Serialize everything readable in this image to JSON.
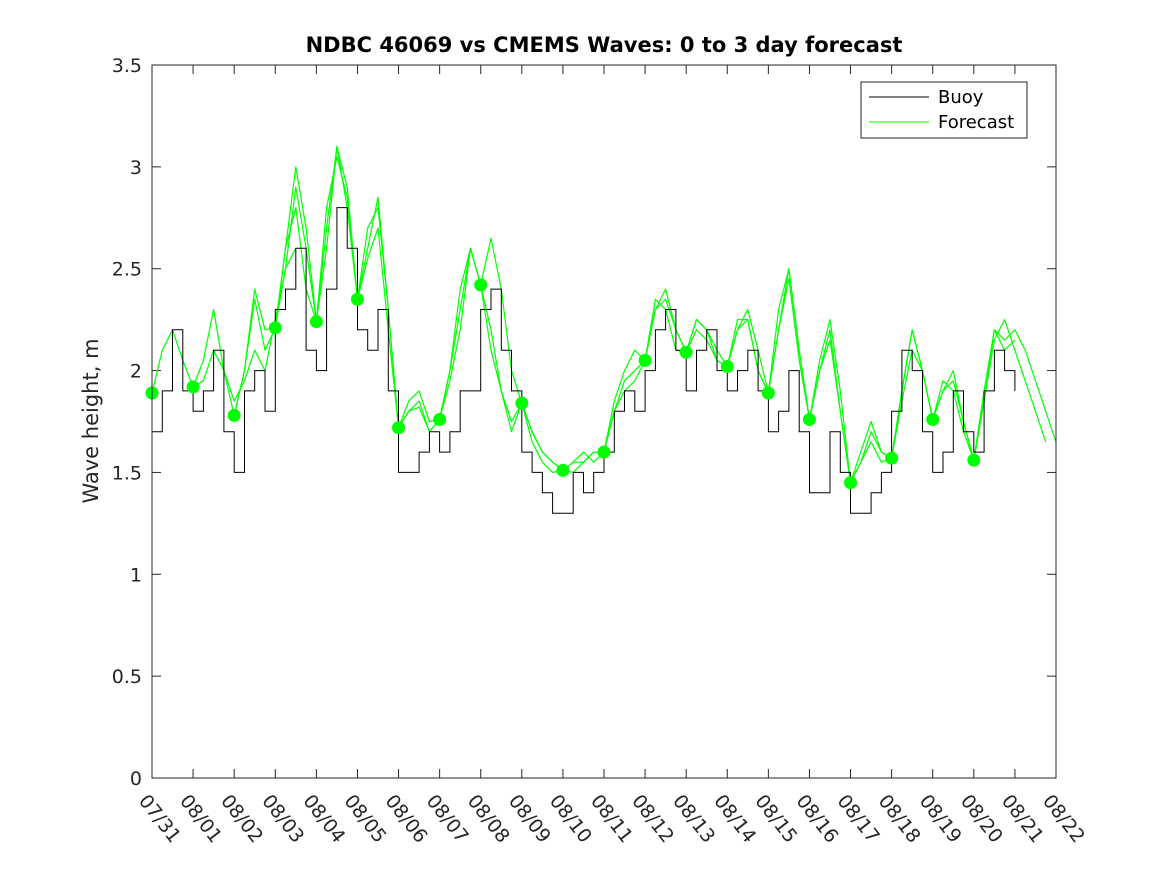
{
  "chart_data": {
    "type": "line",
    "title": "NDBC 46069 vs CMEMS Waves: 0 to 3 day forecast",
    "xlabel": "",
    "ylabel": "Wave height, m",
    "ylim": [
      0,
      3.5
    ],
    "yticks": [
      0,
      0.5,
      1,
      1.5,
      2,
      2.5,
      3,
      3.5
    ],
    "ytick_labels": [
      "0",
      "0.5",
      "1",
      "1.5",
      "2",
      "2.5",
      "3",
      "3.5"
    ],
    "xlim_days": [
      0,
      22
    ],
    "xtick_labels": [
      "07/31",
      "08/01",
      "08/02",
      "08/03",
      "08/04",
      "08/05",
      "08/06",
      "08/07",
      "08/08",
      "08/09",
      "08/10",
      "08/11",
      "08/12",
      "08/13",
      "08/14",
      "08/15",
      "08/16",
      "08/17",
      "08/18",
      "08/19",
      "08/20",
      "08/21",
      "08/22"
    ],
    "legend": {
      "location": "top-right",
      "entries": [
        "Buoy",
        "Forecast"
      ]
    },
    "colors": {
      "buoy": "#000000",
      "forecast": "#00ff00",
      "axes": "#262626"
    },
    "series": [
      {
        "name": "Buoy",
        "x_days": [
          0,
          0.25,
          0.5,
          0.75,
          1,
          1.25,
          1.5,
          1.75,
          2,
          2.25,
          2.5,
          2.75,
          3,
          3.25,
          3.5,
          3.75,
          4,
          4.25,
          4.5,
          4.75,
          5,
          5.25,
          5.5,
          5.75,
          6,
          6.25,
          6.5,
          6.75,
          7,
          7.25,
          7.5,
          7.75,
          8,
          8.25,
          8.5,
          8.75,
          9,
          9.25,
          9.5,
          9.75,
          10,
          10.25,
          10.5,
          10.75,
          11,
          11.25,
          11.5,
          11.75,
          12,
          12.25,
          12.5,
          12.75,
          13,
          13.25,
          13.5,
          13.75,
          14,
          14.25,
          14.5,
          14.75,
          15,
          15.25,
          15.5,
          15.75,
          16,
          16.25,
          16.5,
          16.75,
          17,
          17.25,
          17.5,
          17.75,
          18,
          18.25,
          18.5,
          18.75,
          19,
          19.25,
          19.5,
          19.75,
          20,
          20.25,
          20.5,
          20.75,
          21
        ],
        "values": [
          1.7,
          1.9,
          2.2,
          1.9,
          1.8,
          1.9,
          2.1,
          1.7,
          1.5,
          1.9,
          2.0,
          1.8,
          2.3,
          2.4,
          2.6,
          2.1,
          2.0,
          2.4,
          2.8,
          2.6,
          2.2,
          2.1,
          2.3,
          1.9,
          1.5,
          1.5,
          1.6,
          1.7,
          1.6,
          1.7,
          1.9,
          1.9,
          2.3,
          2.4,
          2.1,
          1.9,
          1.6,
          1.5,
          1.4,
          1.3,
          1.3,
          1.5,
          1.4,
          1.5,
          1.6,
          1.8,
          1.9,
          1.8,
          2.0,
          2.2,
          2.3,
          2.1,
          1.9,
          2.1,
          2.2,
          2.0,
          1.9,
          2.0,
          2.1,
          1.9,
          1.7,
          1.8,
          2.0,
          1.7,
          1.4,
          1.4,
          1.7,
          1.5,
          1.3,
          1.3,
          1.4,
          1.5,
          1.8,
          2.1,
          2.0,
          1.7,
          1.5,
          1.6,
          1.9,
          1.7,
          1.6,
          1.9,
          2.1,
          2.0,
          1.9
        ]
      },
      {
        "name": "Forecast",
        "runs": [
          {
            "start_day": 0,
            "values": [
              1.89,
              2.1,
              2.2,
              2.05,
              1.92,
              1.95,
              2.1,
              2.0,
              1.85,
              1.95,
              2.1,
              2.0,
              2.25,
              2.5,
              2.6
            ]
          },
          {
            "start_day": 1,
            "values": [
              1.92,
              2.05,
              2.3,
              2.0,
              1.78,
              2.0,
              2.35,
              2.1,
              2.21,
              2.6,
              2.8,
              2.4,
              2.24
            ]
          },
          {
            "start_day": 2,
            "values": [
              1.78,
              2.0,
              2.4,
              2.2,
              2.21,
              2.6,
              3.0,
              2.7,
              2.24,
              2.7,
              3.1,
              2.8,
              2.35
            ]
          },
          {
            "start_day": 3,
            "values": [
              2.21,
              2.5,
              2.9,
              2.6,
              2.24,
              2.8,
              3.05,
              2.85,
              2.35,
              2.7,
              2.8,
              2.3,
              1.72
            ]
          },
          {
            "start_day": 4,
            "values": [
              2.24,
              2.6,
              3.1,
              2.9,
              2.35,
              2.6,
              2.85,
              2.3,
              1.72,
              1.85,
              1.9,
              1.75,
              1.76
            ]
          },
          {
            "start_day": 5,
            "values": [
              2.35,
              2.55,
              2.7,
              2.2,
              1.72,
              1.8,
              1.85,
              1.7,
              1.76,
              2.0,
              2.4,
              2.6,
              2.42
            ]
          },
          {
            "start_day": 6,
            "values": [
              1.72,
              1.8,
              1.82,
              1.7,
              1.76,
              2.0,
              2.3,
              2.6,
              2.42,
              2.2,
              1.9,
              1.7,
              1.84
            ]
          },
          {
            "start_day": 7,
            "values": [
              1.76,
              1.95,
              2.2,
              2.6,
              2.42,
              2.1,
              1.9,
              1.75,
              1.84,
              1.65,
              1.55,
              1.5,
              1.51
            ]
          },
          {
            "start_day": 8,
            "values": [
              2.42,
              2.65,
              2.4,
              2.0,
              1.84,
              1.7,
              1.6,
              1.55,
              1.51,
              1.55,
              1.55,
              1.6,
              1.6
            ]
          },
          {
            "start_day": 9,
            "values": [
              1.84,
              1.7,
              1.6,
              1.55,
              1.51,
              1.5,
              1.55,
              1.6,
              1.6,
              1.8,
              1.95,
              2.0,
              2.05
            ]
          },
          {
            "start_day": 10,
            "values": [
              1.51,
              1.55,
              1.6,
              1.55,
              1.6,
              1.8,
              1.9,
              1.95,
              2.05,
              2.3,
              2.35,
              2.2,
              2.09
            ]
          },
          {
            "start_day": 11,
            "values": [
              1.6,
              1.85,
              2.0,
              2.1,
              2.05,
              2.3,
              2.4,
              2.2,
              2.09,
              2.25,
              2.2,
              2.1,
              2.02
            ]
          },
          {
            "start_day": 12,
            "values": [
              2.05,
              2.35,
              2.3,
              2.1,
              2.09,
              2.25,
              2.2,
              2.05,
              2.02,
              2.2,
              2.25,
              2.0,
              1.89
            ]
          },
          {
            "start_day": 13,
            "values": [
              2.09,
              2.2,
              2.15,
              2.05,
              2.02,
              2.2,
              2.3,
              2.1,
              1.89,
              2.2,
              2.45,
              2.05,
              1.76
            ]
          },
          {
            "start_day": 14,
            "values": [
              2.02,
              2.25,
              2.25,
              2.0,
              1.89,
              2.3,
              2.5,
              2.1,
              1.76,
              2.0,
              2.15,
              1.8,
              1.45
            ]
          },
          {
            "start_day": 15,
            "values": [
              1.89,
              2.2,
              2.5,
              2.1,
              1.76,
              2.0,
              2.2,
              1.8,
              1.45,
              1.55,
              1.7,
              1.6,
              1.57
            ]
          },
          {
            "start_day": 16,
            "values": [
              1.76,
              2.05,
              2.25,
              1.9,
              1.45,
              1.55,
              1.65,
              1.55,
              1.57,
              1.85,
              2.1,
              2.0,
              1.76
            ]
          },
          {
            "start_day": 17,
            "values": [
              1.45,
              1.6,
              1.75,
              1.6,
              1.57,
              1.9,
              2.2,
              2.0,
              1.76,
              1.9,
              2.0,
              1.75,
              1.56
            ]
          },
          {
            "start_day": 18,
            "values": [
              1.57,
              1.9,
              2.2,
              2.0,
              1.76,
              1.9,
              1.95,
              1.75,
              1.56,
              1.85,
              2.2,
              2.1,
              2.15
            ]
          },
          {
            "start_day": 19,
            "values": [
              1.76,
              1.95,
              1.9,
              1.7,
              1.56,
              1.9,
              2.2,
              2.15,
              2.2,
              2.1,
              1.95,
              1.8,
              1.65
            ]
          },
          {
            "start_day": 20,
            "values": [
              1.56,
              1.85,
              2.15,
              2.25,
              2.1,
              1.95,
              1.8,
              1.65
            ]
          }
        ]
      }
    ],
    "analysis_points": {
      "x_days": [
        0,
        1,
        2,
        3,
        4,
        5,
        6,
        7,
        8,
        9,
        10,
        11,
        12,
        13,
        14,
        15,
        16,
        17,
        18,
        19,
        20
      ],
      "values": [
        1.89,
        1.92,
        1.78,
        2.21,
        2.24,
        2.35,
        1.72,
        1.76,
        2.42,
        1.84,
        1.51,
        1.6,
        2.05,
        2.09,
        2.02,
        1.89,
        1.76,
        1.45,
        1.57,
        1.76,
        1.56
      ]
    }
  }
}
